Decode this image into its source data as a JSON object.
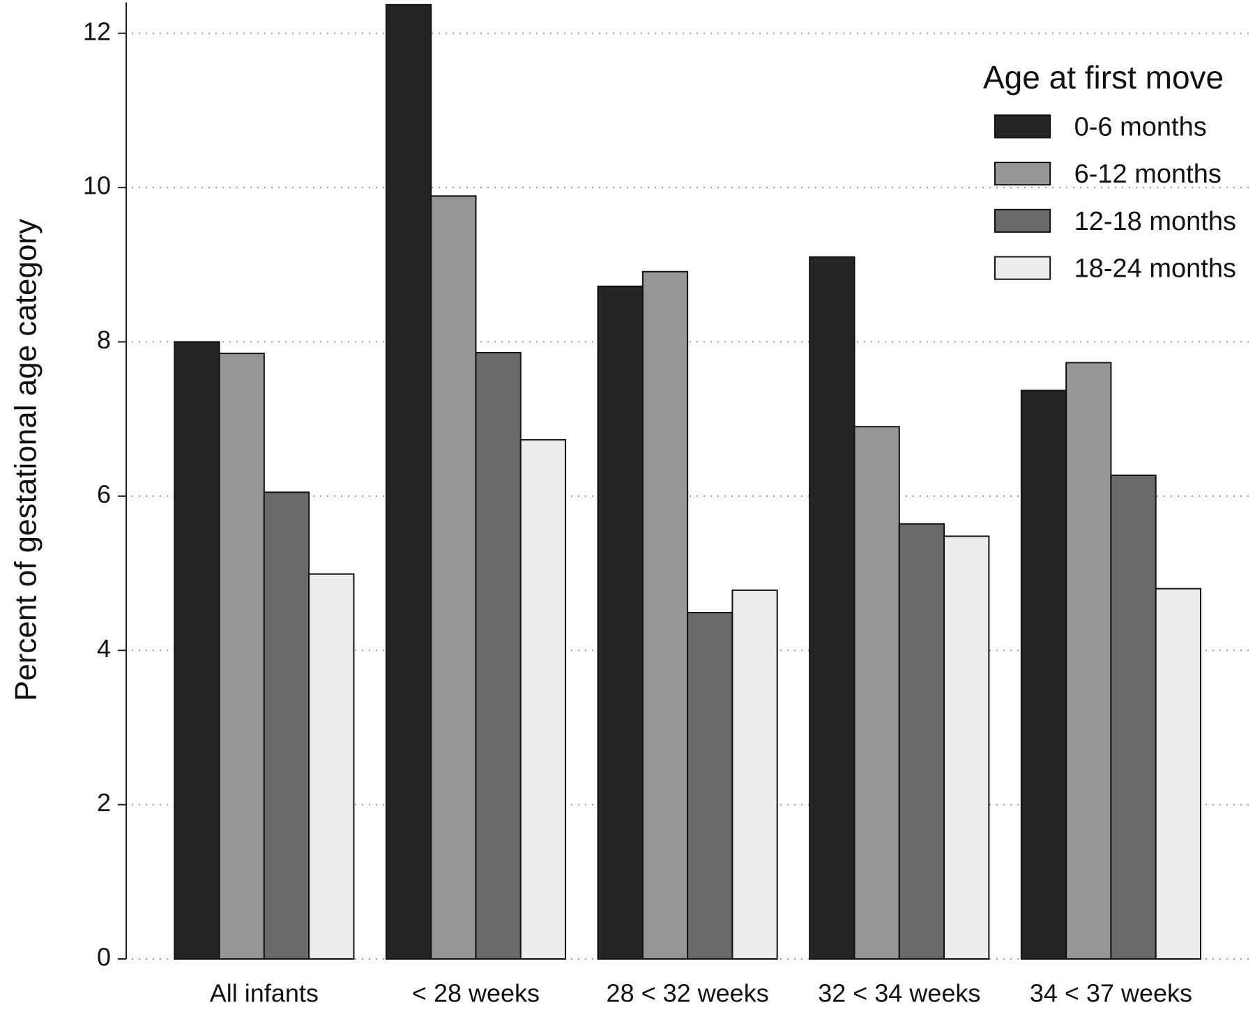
{
  "chart_data": {
    "type": "bar",
    "y_label": "Percent of gestational age category",
    "legend_title": "Age at first move",
    "categories": [
      "All infants",
      "< 28 weeks",
      "28 < 32 weeks",
      "32 < 34 weeks",
      "34 < 37 weeks"
    ],
    "series": [
      {
        "name": "0-6 months",
        "color": "#252525",
        "values": [
          8.0,
          12.37,
          8.72,
          9.1,
          7.37
        ]
      },
      {
        "name": "6-12 months",
        "color": "#969696",
        "values": [
          7.85,
          9.89,
          8.91,
          6.9,
          7.73
        ]
      },
      {
        "name": "12-18 months",
        "color": "#6a6a6a",
        "values": [
          6.05,
          7.86,
          4.49,
          5.64,
          6.27
        ]
      },
      {
        "name": "18-24 months",
        "color": "#ececec",
        "values": [
          4.99,
          6.73,
          4.78,
          5.48,
          4.8
        ]
      }
    ],
    "ylim": [
      0,
      12.4
    ],
    "yticks": [
      0,
      2,
      4,
      6,
      8,
      10,
      12
    ],
    "grid": true,
    "legend": "top-right"
  }
}
